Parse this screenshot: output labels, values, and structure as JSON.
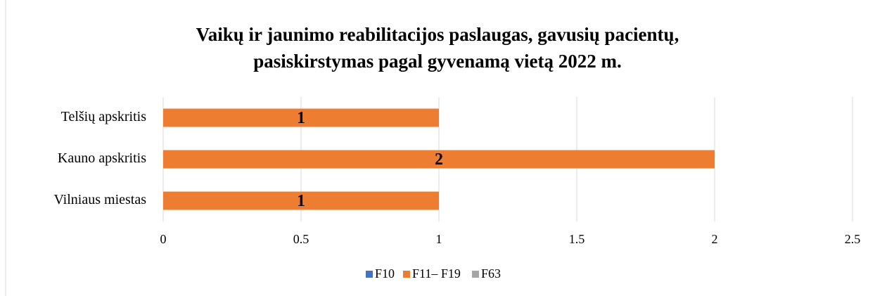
{
  "chart_data": {
    "type": "stacked-barh",
    "title": "Vaikų ir jaunimo reabilitacijos paslaugas, gavusių pacientų,",
    "subtitle": "pasiskirstymas pagal gyvenamą vietą 2022 m.",
    "categories": [
      "Telšių apskritis",
      "Kauno apskritis",
      "Vilniaus miestas"
    ],
    "series": [
      {
        "name": "F10",
        "color": "#4472c4",
        "values": [
          0,
          0,
          0
        ]
      },
      {
        "name": "F11– F19",
        "color": "#ed7d31",
        "values": [
          1,
          2,
          1
        ],
        "labels": true
      },
      {
        "name": "F63",
        "color": "#a5a5a5",
        "values": [
          0,
          0,
          0
        ]
      }
    ],
    "xlim": [
      0,
      2.5
    ],
    "xticks": [
      0,
      0.5,
      1,
      1.5,
      2,
      2.5
    ],
    "grid": true,
    "legend": "bottom"
  }
}
